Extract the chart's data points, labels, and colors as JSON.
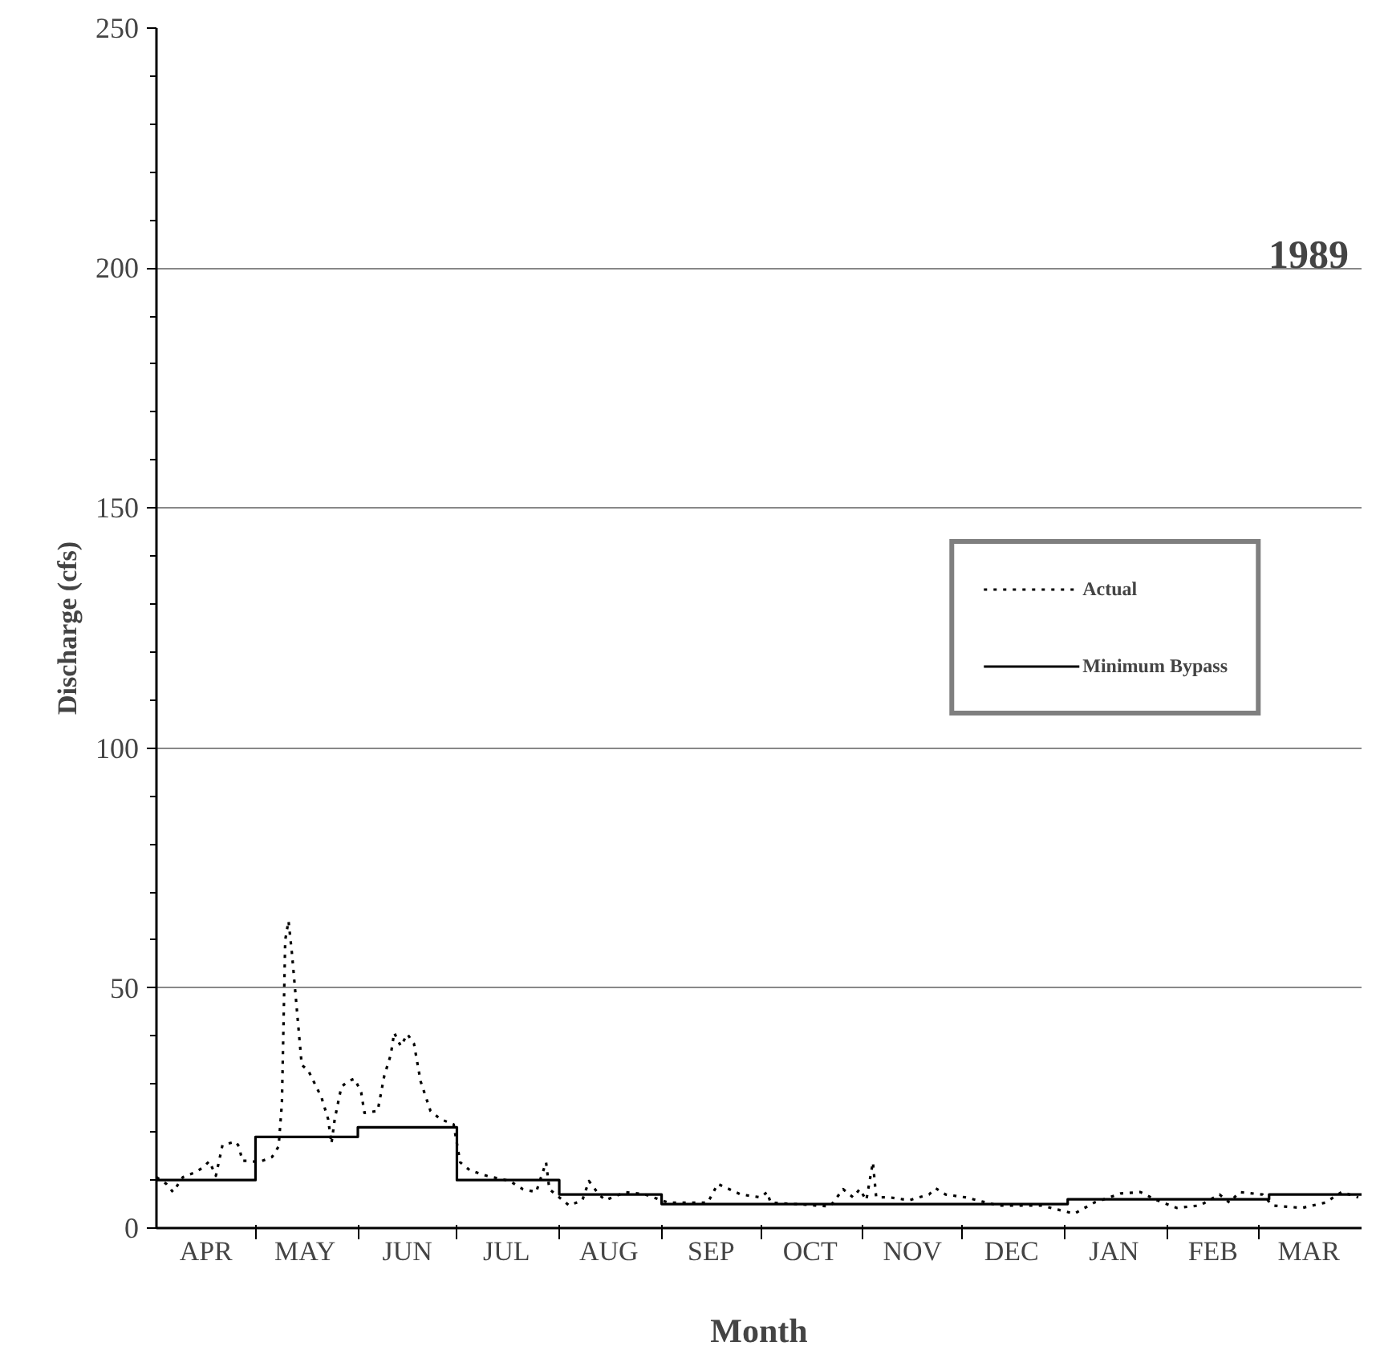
{
  "chart_data": {
    "type": "line",
    "xlabel": "Month",
    "ylabel": "Discharge (cfs)",
    "annotations": [
      "1989"
    ],
    "xlim": [
      "1989-04-01",
      "1990-04-01"
    ],
    "ylim": [
      0,
      250
    ],
    "yticks": [
      0,
      50,
      100,
      150,
      200,
      250
    ],
    "xticks": [
      {
        "value": "1989-05-01",
        "label": null
      },
      {
        "value": "1989-06-01",
        "label": null
      },
      {
        "value": "1989-07-01",
        "label": null
      },
      {
        "value": "1989-08-01",
        "label": null
      },
      {
        "value": "1989-09-01",
        "label": null
      },
      {
        "value": "1989-10-01",
        "label": null
      },
      {
        "value": "1989-11-01",
        "label": null
      },
      {
        "value": "1989-12-01",
        "label": null
      },
      {
        "value": "1990-01-01",
        "label": null
      },
      {
        "value": "1990-02-01",
        "label": null
      },
      {
        "value": "1990-03-01",
        "label": null
      },
      {
        "value": "1989-04-16",
        "label": "APR"
      },
      {
        "value": "1989-05-16",
        "label": "MAY"
      },
      {
        "value": "1989-06-16",
        "label": "JUN"
      },
      {
        "value": "1989-07-16",
        "label": "JUL"
      },
      {
        "value": "1989-08-16",
        "label": "AUG"
      },
      {
        "value": "1989-09-16",
        "label": "SEP"
      },
      {
        "value": "1989-10-16",
        "label": "OCT"
      },
      {
        "value": "1989-11-16",
        "label": "NOV"
      },
      {
        "value": "1989-12-16",
        "label": "DEC"
      },
      {
        "value": "1990-01-16",
        "label": "JAN"
      },
      {
        "value": "1990-02-15",
        "label": "FEB"
      },
      {
        "value": "1990-03-16",
        "label": "MAR"
      }
    ],
    "grid": "y",
    "legend": "right",
    "series": [
      {
        "name": "Actual",
        "color": "#000000",
        "line_style": "dotted",
        "x": [
          "1989-04-01",
          "1989-04-04",
          "1989-04-06",
          "1989-04-09",
          "1989-04-13",
          "1989-04-15",
          "1989-04-17",
          "1989-04-19",
          "1989-04-21",
          "1989-04-25",
          "1989-04-26",
          "1989-04-27",
          "1989-04-29",
          "1989-05-02",
          "1989-05-06",
          "1989-05-08",
          "1989-05-09",
          "1989-05-10",
          "1989-05-11",
          "1989-05-12",
          "1989-05-14",
          "1989-05-15",
          "1989-05-17",
          "1989-05-19",
          "1989-05-21",
          "1989-05-23",
          "1989-05-24",
          "1989-05-25",
          "1989-05-27",
          "1989-05-29",
          "1989-05-31",
          "1989-06-02",
          "1989-06-03",
          "1989-06-07",
          "1989-06-09",
          "1989-06-11",
          "1989-06-12",
          "1989-06-14",
          "1989-06-16",
          "1989-06-18",
          "1989-06-20",
          "1989-06-23",
          "1989-06-26",
          "1989-06-30",
          "1989-07-02",
          "1989-07-05",
          "1989-07-10",
          "1989-07-17",
          "1989-07-21",
          "1989-07-25",
          "1989-07-28",
          "1989-07-29",
          "1989-08-01",
          "1989-08-04",
          "1989-08-08",
          "1989-08-10",
          "1989-08-13",
          "1989-08-15",
          "1989-08-21",
          "1989-08-27",
          "1989-09-03",
          "1989-09-15",
          "1989-09-18",
          "1989-09-25",
          "1989-10-01",
          "1989-10-03",
          "1989-10-04",
          "1989-10-14",
          "1989-10-22",
          "1989-10-26",
          "1989-10-29",
          "1989-10-31",
          "1989-11-02",
          "1989-11-04",
          "1989-11-05",
          "1989-11-09",
          "1989-11-15",
          "1989-11-21",
          "1989-11-23",
          "1989-11-26",
          "1989-12-02",
          "1989-12-12",
          "1989-12-25",
          "1990-01-04",
          "1990-01-10",
          "1990-01-18",
          "1990-01-24",
          "1990-01-29",
          "1990-02-04",
          "1990-02-11",
          "1990-02-17",
          "1990-02-20",
          "1990-02-23",
          "1990-03-02",
          "1990-03-05",
          "1990-03-14",
          "1990-03-21",
          "1990-03-26",
          "1990-03-31"
        ],
        "values": [
          10.6,
          9.2,
          7.5,
          10.6,
          11.7,
          12.6,
          13.9,
          10.9,
          17.3,
          18,
          17,
          14,
          14,
          13.7,
          14.8,
          17,
          26,
          60,
          64,
          57.5,
          41.8,
          34,
          32.8,
          30,
          27.2,
          22.7,
          17.6,
          22.7,
          29.4,
          30.6,
          31.1,
          28.3,
          24,
          24.4,
          31.7,
          36.2,
          40.7,
          37.9,
          40.4,
          38.4,
          30.6,
          24.4,
          22.7,
          21.6,
          13.7,
          12,
          10.9,
          9.8,
          8.1,
          7.5,
          13.7,
          8.1,
          6.4,
          4.7,
          5.8,
          9.8,
          7,
          5.8,
          7.5,
          7,
          5.3,
          5.3,
          9.2,
          7,
          6.4,
          7.5,
          5.3,
          4.9,
          4.5,
          8.1,
          6.4,
          8.1,
          5.8,
          13.7,
          6.4,
          6.4,
          5.8,
          7,
          8.3,
          7,
          6.4,
          4.7,
          4.7,
          3,
          5.3,
          7.2,
          7.5,
          5.8,
          4.2,
          4.7,
          7,
          5.3,
          7.5,
          7,
          4.7,
          4.2,
          5.3,
          7.5,
          6.4
        ]
      },
      {
        "name": "Minimum Bypass",
        "color": "#000000",
        "line_style": "solid",
        "x": [
          "1989-04-01",
          "1989-05-01",
          "1989-05-01",
          "1989-06-01",
          "1989-06-01",
          "1989-07-01",
          "1989-07-01",
          "1989-08-01",
          "1989-08-01",
          "1989-09-01",
          "1989-09-01",
          "1990-01-02",
          "1990-01-02",
          "1990-03-04",
          "1990-03-04",
          "1990-04-01"
        ],
        "values": [
          10,
          10,
          19,
          19,
          21,
          21,
          10,
          10,
          7,
          7,
          5,
          5,
          6,
          6,
          7,
          7
        ]
      }
    ]
  }
}
